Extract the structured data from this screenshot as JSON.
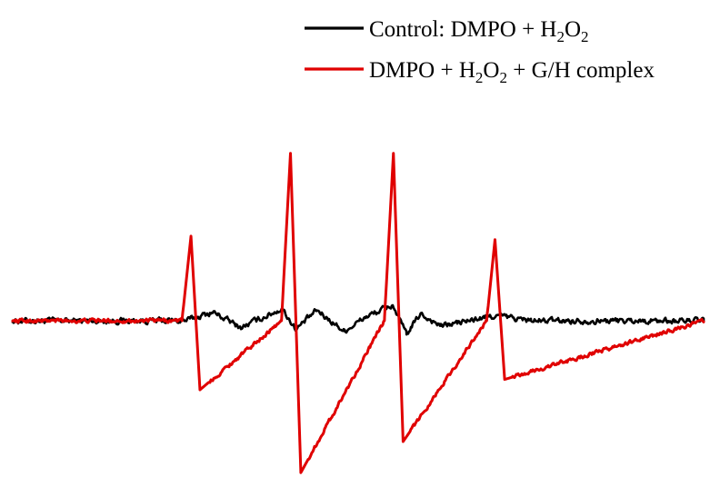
{
  "chart_data": {
    "type": "line",
    "title": "",
    "xlabel": "",
    "ylabel": "",
    "grid": false,
    "axes_visible": false,
    "legend": {
      "position": "top-right",
      "entries": [
        {
          "series": "control",
          "prefix": "Control: DMPO + H",
          "sub1": "2",
          "mid": "O",
          "sub2": "2",
          "suffix": ""
        },
        {
          "series": "complex",
          "prefix": "DMPO + H",
          "sub1": "2",
          "mid": "O",
          "sub2": "2",
          "suffix": " + G/H complex"
        }
      ]
    },
    "xlim": [
      0,
      100
    ],
    "ylim": [
      -100,
      100
    ],
    "series": [
      {
        "id": "control",
        "color": "#000000",
        "baseline": 0,
        "noise_amplitude": 3,
        "x": [
          0,
          25,
          29,
          33,
          39,
          41,
          44,
          48,
          51,
          55,
          57,
          59,
          62,
          70,
          75,
          100
        ],
        "values": [
          0,
          0,
          5,
          -4,
          7,
          -5,
          6,
          -6,
          2,
          9,
          -8,
          4,
          -3,
          3,
          0,
          0
        ]
      },
      {
        "id": "complex",
        "color": "#e00000",
        "baseline": 0,
        "noise_amplitude": 2,
        "x": [
          0,
          24.5,
          25.8,
          27.1,
          38.9,
          40.2,
          41.7,
          53.8,
          55.1,
          56.5,
          68.6,
          69.8,
          71.2,
          100
        ],
        "values": [
          0,
          0,
          49,
          -40,
          0,
          97,
          -88,
          0,
          97,
          -70,
          0,
          47,
          -34,
          0
        ],
        "peaks": [
          {
            "x": 25.8,
            "y": 49
          },
          {
            "x": 27.1,
            "y": -40
          },
          {
            "x": 40.2,
            "y": 97
          },
          {
            "x": 41.7,
            "y": -88
          },
          {
            "x": 55.1,
            "y": 97
          },
          {
            "x": 56.5,
            "y": -70
          },
          {
            "x": 69.8,
            "y": 47
          },
          {
            "x": 71.2,
            "y": -34
          }
        ]
      }
    ]
  }
}
